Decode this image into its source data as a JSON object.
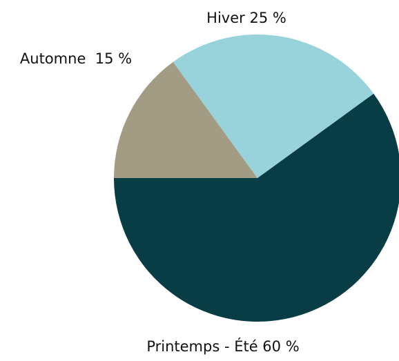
{
  "chart_data": {
    "type": "pie",
    "values": [
      15,
      25,
      60
    ],
    "value_labels": [
      "Automne  15 %",
      "Hiver 25 %",
      "Printemps - Été 60 %"
    ],
    "colors": [
      "#a39c85",
      "#98d3dc",
      "#083d46"
    ]
  }
}
